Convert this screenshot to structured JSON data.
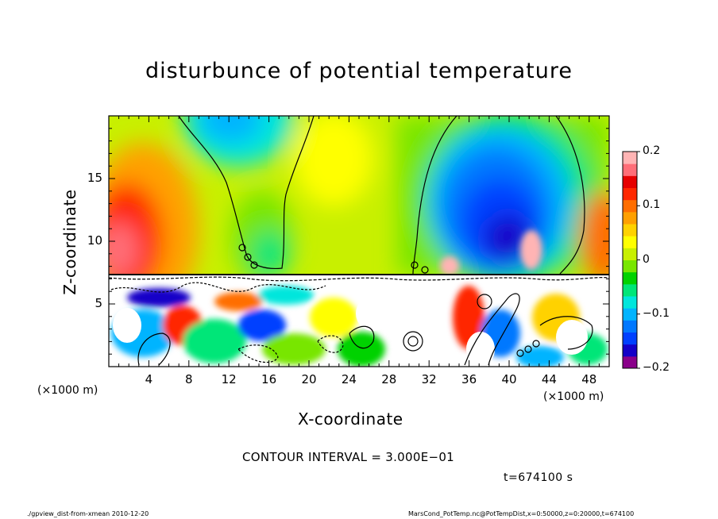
{
  "chart_data": {
    "type": "heatmap",
    "title": "disturbunce of potential temperature",
    "xlabel": "X-coordinate",
    "ylabel": "Z-coordinate",
    "x_multiplier": "(×1000 m)",
    "y_multiplier": "(×1000 m)",
    "xlim": [
      0,
      50
    ],
    "ylim": [
      0,
      20
    ],
    "x_ticks": [
      "4",
      "8",
      "12",
      "16",
      "20",
      "24",
      "28",
      "32",
      "36",
      "40",
      "44",
      "48"
    ],
    "x_tick_values": [
      4,
      8,
      12,
      16,
      20,
      24,
      28,
      32,
      36,
      40,
      44,
      48
    ],
    "y_ticks": [
      "5",
      "10",
      "15"
    ],
    "y_tick_values": [
      5,
      10,
      15
    ],
    "colorbar": {
      "min": -0.2,
      "max": 0.2,
      "ticks": [
        "0.2",
        "0.1",
        "0",
        "−0.1",
        "−0.2"
      ],
      "tick_values": [
        0.2,
        0.1,
        0,
        -0.1,
        -0.2
      ],
      "colors": [
        "#8a008a",
        "#1400c8",
        "#0040ff",
        "#0078ff",
        "#00b4ff",
        "#00e6dc",
        "#00e678",
        "#00d200",
        "#78e600",
        "#c8f000",
        "#ffff00",
        "#ffd200",
        "#ffa000",
        "#ff6e00",
        "#ff2800",
        "#e60000",
        "#ff6e78",
        "#ffb4b4"
      ]
    },
    "contour_interval": "CONTOUR INTERVAL = 3.000E−01",
    "time": "t=674100 s"
  },
  "footer": {
    "left": "./gpview_dist-from-xmean   2010-12-20",
    "right": "MarsCond_PotTemp.nc@PotTempDist,x=0:50000,z=0:20000,t=674100"
  },
  "colors": {
    "axis": "#000000",
    "background": "#ffffff"
  }
}
